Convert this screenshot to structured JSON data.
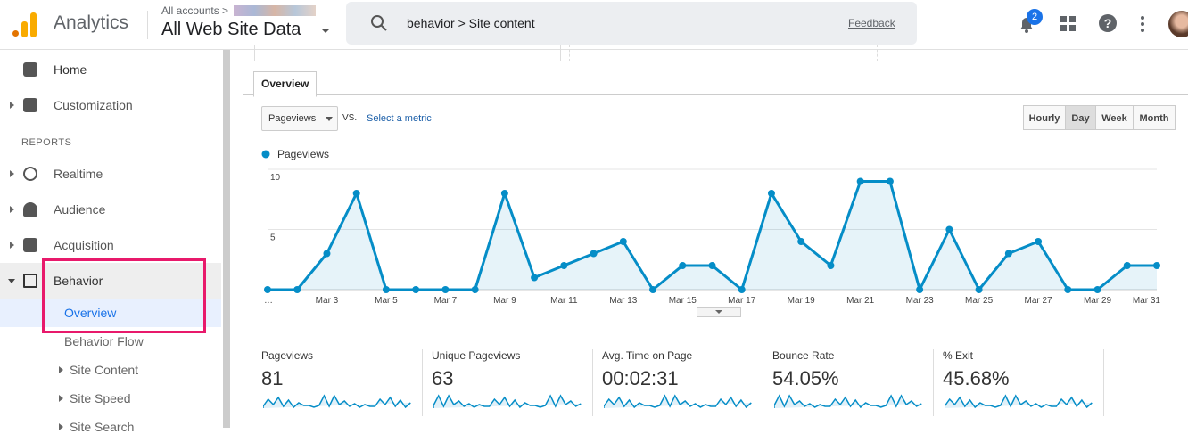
{
  "header": {
    "logo_text": "Analytics",
    "account_crumb": "All accounts >",
    "property": "All Web Site Data",
    "search": "behavior > Site content",
    "feedback": "Feedback",
    "notifications": "2"
  },
  "sidebar": {
    "home": "Home",
    "customization": "Customization",
    "section": "REPORTS",
    "realtime": "Realtime",
    "audience": "Audience",
    "acquisition": "Acquisition",
    "behavior": "Behavior",
    "overview": "Overview",
    "behavior_flow": "Behavior Flow",
    "site_content": "Site Content",
    "site_speed": "Site Speed",
    "site_search": "Site Search"
  },
  "tab": "Overview",
  "controls": {
    "metric": "Pageviews",
    "vs": "VS.",
    "select_metric": "Select a metric",
    "granularity": [
      "Hourly",
      "Day",
      "Week",
      "Month"
    ]
  },
  "chart_data": {
    "type": "line",
    "categories": [
      "…",
      null,
      "Mar 3",
      null,
      "Mar 5",
      null,
      "Mar 7",
      null,
      "Mar 9",
      null,
      "Mar 11",
      null,
      "Mar 13",
      null,
      "Mar 15",
      null,
      "Mar 17",
      null,
      "Mar 19",
      null,
      "Mar 21",
      null,
      "Mar 23",
      null,
      "Mar 25",
      null,
      "Mar 27",
      null,
      "Mar 29",
      null,
      "Mar 31"
    ],
    "series": [
      {
        "name": "Pageviews",
        "color": "#058dc7",
        "values": [
          0,
          0,
          3,
          8,
          0,
          0,
          0,
          0,
          8,
          1,
          2,
          3,
          4,
          0,
          2,
          2,
          0,
          8,
          4,
          2,
          9,
          9,
          0,
          5,
          0,
          3,
          4,
          0,
          0,
          2,
          2
        ]
      }
    ],
    "ylim": [
      0,
      10
    ],
    "yticks": [
      5,
      10
    ],
    "grid": true
  },
  "metrics": [
    {
      "label": "Pageviews",
      "value": "81"
    },
    {
      "label": "Unique Pageviews",
      "value": "63"
    },
    {
      "label": "Avg. Time on Page",
      "value": "00:02:31"
    },
    {
      "label": "Bounce Rate",
      "value": "54.05%"
    },
    {
      "label": "% Exit",
      "value": "45.68%"
    }
  ]
}
